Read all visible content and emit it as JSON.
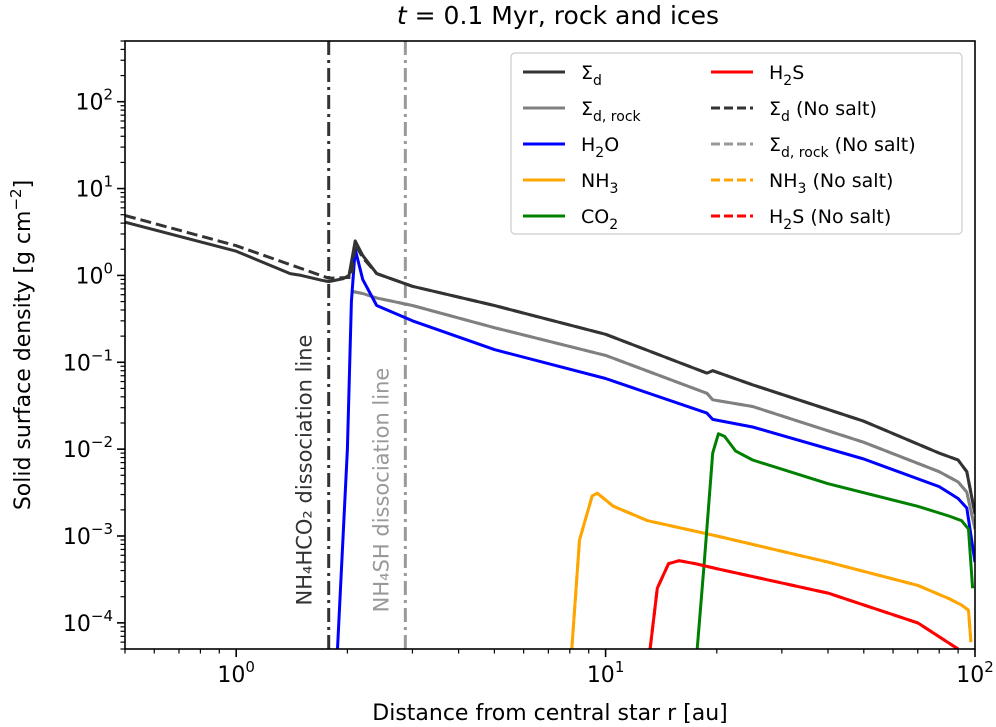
{
  "chart_data": {
    "type": "line",
    "title": "t = 0.1 Myr, rock and ices",
    "xlabel": "Distance from central star r [au]",
    "ylabel": "Solid surface density [g cm−2]",
    "xscale": "log",
    "yscale": "log",
    "xlim": [
      0.5,
      100
    ],
    "ylim": [
      5e-05,
      500
    ],
    "x_ticks": [
      {
        "value": 1,
        "base": "10",
        "exp": "0"
      },
      {
        "value": 10,
        "base": "10",
        "exp": "1"
      },
      {
        "value": 100,
        "base": "10",
        "exp": "2"
      }
    ],
    "y_ticks": [
      {
        "value": 0.0001,
        "base": "10",
        "exp": "−4"
      },
      {
        "value": 0.001,
        "base": "10",
        "exp": "−3"
      },
      {
        "value": 0.01,
        "base": "10",
        "exp": "−2"
      },
      {
        "value": 0.1,
        "base": "10",
        "exp": "−1"
      },
      {
        "value": 1,
        "base": "10",
        "exp": "0"
      },
      {
        "value": 10,
        "base": "10",
        "exp": "1"
      },
      {
        "value": 100,
        "base": "10",
        "exp": "2"
      }
    ],
    "vlines": [
      {
        "name": "NH4HCO2",
        "x": 1.78,
        "color": "#333333",
        "label": "NH₄HCO₂ dissociation line"
      },
      {
        "name": "NH4SH",
        "x": 2.87,
        "color": "#999999",
        "label": "NH₄SH dissociation line"
      }
    ],
    "series": [
      {
        "key": "sigma_d_nosalt",
        "name": "Σd (No salt)",
        "color": "#333333",
        "dash": true,
        "x": [
          0.5,
          1.0,
          1.5,
          1.78,
          2.05,
          2.1,
          2.2,
          2.4,
          3.0,
          5.0,
          10.0,
          18.8,
          19.5,
          25.0,
          50.0,
          80.0,
          90.0,
          95.0,
          100.0
        ],
        "y": [
          4.9,
          2.2,
          1.2,
          0.93,
          0.95,
          2.3,
          1.6,
          1.05,
          0.75,
          0.45,
          0.21,
          0.075,
          0.08,
          0.055,
          0.021,
          0.009,
          0.0075,
          0.0055,
          0.0018
        ]
      },
      {
        "key": "sigma_d",
        "name": "Σd",
        "color": "#333333",
        "dash": false,
        "x": [
          0.5,
          1.0,
          1.4,
          1.5,
          1.7,
          1.78,
          1.95,
          2.02,
          2.1,
          2.2,
          2.4,
          3.0,
          5.0,
          10.0,
          18.8,
          19.5,
          25.0,
          50.0,
          80.0,
          90.0,
          95.0,
          100.0
        ],
        "y": [
          4.1,
          1.9,
          1.05,
          1.0,
          0.88,
          0.85,
          0.92,
          1.0,
          2.5,
          1.7,
          1.05,
          0.75,
          0.45,
          0.21,
          0.075,
          0.08,
          0.055,
          0.021,
          0.009,
          0.0075,
          0.0055,
          0.0018
        ]
      },
      {
        "key": "sigma_d_rock_nosalt",
        "name": "Σd,rock (No salt)",
        "color": "#999999",
        "dash": true,
        "x": [
          2.05,
          2.2,
          2.4,
          3.0,
          5.0,
          10.0,
          18.8,
          19.5,
          25.0,
          50.0,
          80.0,
          90.0,
          95.0,
          100.0
        ],
        "y": [
          0.65,
          0.62,
          0.55,
          0.45,
          0.25,
          0.12,
          0.044,
          0.037,
          0.031,
          0.012,
          0.0055,
          0.0042,
          0.0032,
          0.0012
        ]
      },
      {
        "key": "sigma_d_rock",
        "name": "Σd,rock",
        "color": "#808080",
        "dash": false,
        "x": [
          2.05,
          2.2,
          2.4,
          3.0,
          5.0,
          10.0,
          18.8,
          19.5,
          25.0,
          50.0,
          80.0,
          90.0,
          95.0,
          100.0
        ],
        "y": [
          0.66,
          0.62,
          0.55,
          0.45,
          0.25,
          0.12,
          0.044,
          0.037,
          0.031,
          0.012,
          0.0055,
          0.0042,
          0.0032,
          0.0012
        ]
      },
      {
        "key": "h2o",
        "name": "H2O",
        "color": "#0000ff",
        "dash": false,
        "x": [
          1.88,
          2.0,
          2.05,
          2.1,
          2.2,
          2.4,
          3.0,
          5.0,
          10.0,
          18.8,
          19.5,
          25.0,
          50.0,
          80.0,
          90.0,
          95.0,
          100.0
        ],
        "y": [
          5e-05,
          0.01,
          0.5,
          2.0,
          0.9,
          0.45,
          0.3,
          0.14,
          0.065,
          0.026,
          0.022,
          0.018,
          0.0077,
          0.0037,
          0.0027,
          0.0021,
          0.0005
        ]
      },
      {
        "key": "nh3",
        "name": "NH3",
        "color": "#ffa500",
        "dash": false,
        "x": [
          8.1,
          8.5,
          9.2,
          9.5,
          10.5,
          13.0,
          20.0,
          40.0,
          70.0,
          85.0,
          92.0,
          96.0,
          97.5
        ],
        "y": [
          5e-05,
          0.0009,
          0.0029,
          0.0031,
          0.0022,
          0.0015,
          0.001,
          0.0005,
          0.00027,
          0.00019,
          0.00016,
          0.00014,
          6e-05
        ]
      },
      {
        "key": "nh3_nosalt",
        "name": "NH3 (No salt)",
        "color": "#ffa500",
        "dash": true,
        "x": [
          8.1,
          8.5,
          9.2,
          9.5,
          10.5,
          13.0,
          20.0,
          40.0,
          70.0,
          85.0,
          92.0,
          96.0,
          97.5
        ],
        "y": [
          5e-05,
          0.0009,
          0.0029,
          0.0031,
          0.0022,
          0.0015,
          0.001,
          0.0005,
          0.00027,
          0.00019,
          0.00016,
          0.00014,
          6e-05
        ]
      },
      {
        "key": "co2",
        "name": "CO2",
        "color": "#008000",
        "dash": false,
        "x": [
          17.7,
          18.5,
          19.5,
          20.2,
          21.0,
          22.5,
          25.0,
          40.0,
          70.0,
          85.0,
          92.0,
          96.0,
          98.5
        ],
        "y": [
          5e-05,
          0.0005,
          0.009,
          0.015,
          0.014,
          0.0095,
          0.0075,
          0.004,
          0.0022,
          0.0017,
          0.0015,
          0.0012,
          0.00025
        ]
      },
      {
        "key": "h2s",
        "name": "H2S",
        "color": "#ff0000",
        "dash": false,
        "x": [
          13.2,
          13.8,
          14.8,
          15.8,
          17.5,
          20.0,
          40.0,
          70.0,
          90.0
        ],
        "y": [
          5e-05,
          0.00025,
          0.00048,
          0.00052,
          0.00048,
          0.00042,
          0.00022,
          0.0001,
          5e-05
        ]
      },
      {
        "key": "h2s_nosalt",
        "name": "H2S (No salt)",
        "color": "#ff0000",
        "dash": true,
        "x": [
          13.2,
          13.8,
          14.8,
          15.8,
          17.5,
          20.0,
          40.0,
          70.0,
          90.0
        ],
        "y": [
          5e-05,
          0.00025,
          0.00048,
          0.00052,
          0.00048,
          0.00042,
          0.00022,
          0.0001,
          5e-05
        ]
      }
    ],
    "legend": {
      "placement": "top-right",
      "columns": [
        [
          {
            "key": "sigma_d",
            "dash": false,
            "color": "#333333",
            "label": {
              "main": "Σ",
              "sub": "d",
              "tail": ""
            }
          },
          {
            "key": "sigma_d_rock",
            "dash": false,
            "color": "#808080",
            "label": {
              "main": "Σ",
              "sub": "d, rock",
              "tail": ""
            }
          },
          {
            "key": "h2o",
            "dash": false,
            "color": "#0000ff",
            "label": {
              "main": "H",
              "sub": "2",
              "tail": "O"
            }
          },
          {
            "key": "nh3",
            "dash": false,
            "color": "#ffa500",
            "label": {
              "main": "NH",
              "sub": "3",
              "tail": ""
            }
          },
          {
            "key": "co2",
            "dash": false,
            "color": "#008000",
            "label": {
              "main": "CO",
              "sub": "2",
              "tail": ""
            }
          }
        ],
        [
          {
            "key": "h2s",
            "dash": false,
            "color": "#ff0000",
            "label": {
              "main": "H",
              "sub": "2",
              "tail": "S"
            }
          },
          {
            "key": "sigma_d_nosalt",
            "dash": true,
            "color": "#333333",
            "label": {
              "main": "Σ",
              "sub": "d",
              "tail": " (No salt)"
            }
          },
          {
            "key": "sigma_d_rock_nosalt",
            "dash": true,
            "color": "#999999",
            "label": {
              "main": "Σ",
              "sub": "d, rock",
              "tail": " (No salt)"
            }
          },
          {
            "key": "nh3_nosalt",
            "dash": true,
            "color": "#ffa500",
            "label": {
              "main": "NH",
              "sub": "3",
              "tail": " (No salt)"
            }
          },
          {
            "key": "h2s_nosalt",
            "dash": true,
            "color": "#ff0000",
            "label": {
              "main": "H",
              "sub": "2",
              "tail": "S (No salt)"
            }
          }
        ]
      ]
    }
  }
}
